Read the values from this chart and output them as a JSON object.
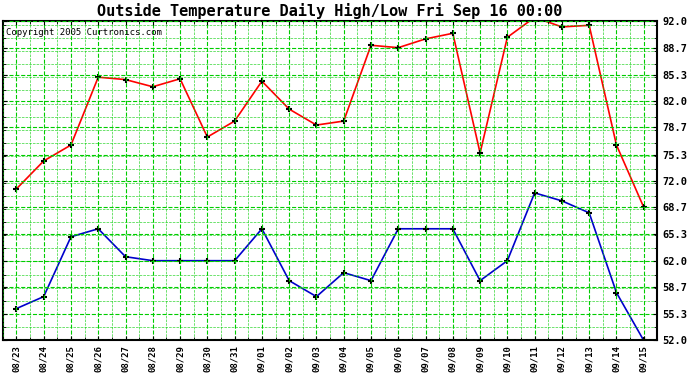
{
  "title": "Outside Temperature Daily High/Low Fri Sep 16 00:00",
  "copyright": "Copyright 2005 Curtronics.com",
  "x_labels": [
    "08/23",
    "08/24",
    "08/25",
    "08/26",
    "08/27",
    "08/28",
    "08/29",
    "08/30",
    "08/31",
    "09/01",
    "09/02",
    "09/03",
    "09/04",
    "09/05",
    "09/06",
    "09/07",
    "09/08",
    "09/09",
    "09/10",
    "09/11",
    "09/12",
    "09/13",
    "09/14",
    "09/15"
  ],
  "high_temps": [
    71.0,
    74.5,
    76.5,
    85.0,
    84.7,
    83.8,
    84.8,
    77.5,
    79.5,
    84.5,
    81.0,
    79.0,
    79.5,
    89.0,
    88.7,
    89.8,
    90.5,
    75.5,
    90.0,
    92.5,
    91.3,
    91.5,
    76.5,
    68.7
  ],
  "low_temps": [
    56.0,
    57.5,
    65.0,
    66.0,
    62.5,
    62.0,
    62.0,
    62.0,
    62.0,
    66.0,
    59.5,
    57.5,
    60.5,
    59.5,
    66.0,
    66.0,
    66.0,
    59.5,
    62.0,
    70.5,
    69.5,
    68.0,
    58.0,
    52.0
  ],
  "high_color": "#ff0000",
  "low_color": "#0000cc",
  "bg_color": "#ffffff",
  "plot_bg_color": "#ffffff",
  "grid_color": "#00cc00",
  "yticks": [
    52.0,
    55.3,
    58.7,
    62.0,
    65.3,
    68.7,
    72.0,
    75.3,
    78.7,
    82.0,
    85.3,
    88.7,
    92.0
  ],
  "ymin": 52.0,
  "ymax": 92.0,
  "title_fontsize": 11,
  "marker": "+",
  "marker_size": 5,
  "linewidth": 1.2
}
